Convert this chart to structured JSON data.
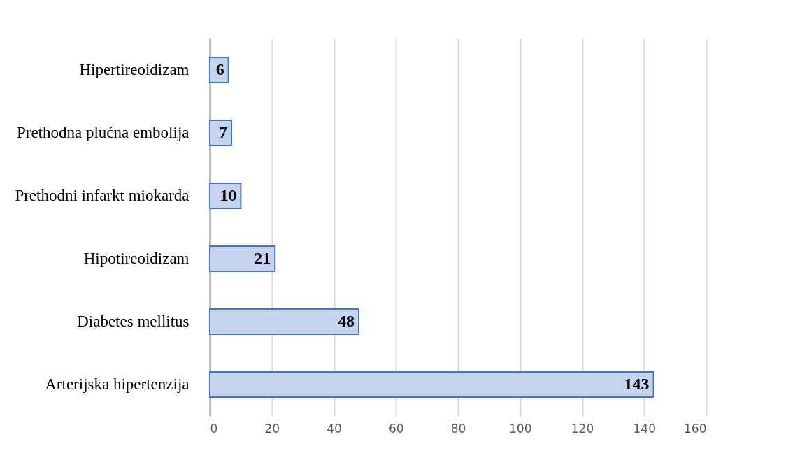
{
  "chart_data": {
    "type": "bar",
    "orientation": "horizontal",
    "categories": [
      "Hipertireoidizam",
      "Prethodna plućna embolija",
      "Prethodni infarkt miokarda",
      "Hipotireoidizam",
      "Diabetes mellitus",
      "Arterijska hipertenzija"
    ],
    "values": [
      6,
      7,
      10,
      21,
      48,
      143
    ],
    "color": "#c5d3ef",
    "xlim": [
      0,
      160
    ],
    "xticks": [
      0,
      20,
      40,
      60,
      80,
      100,
      120,
      140,
      160
    ],
    "grid": "x",
    "data_labels": true
  }
}
